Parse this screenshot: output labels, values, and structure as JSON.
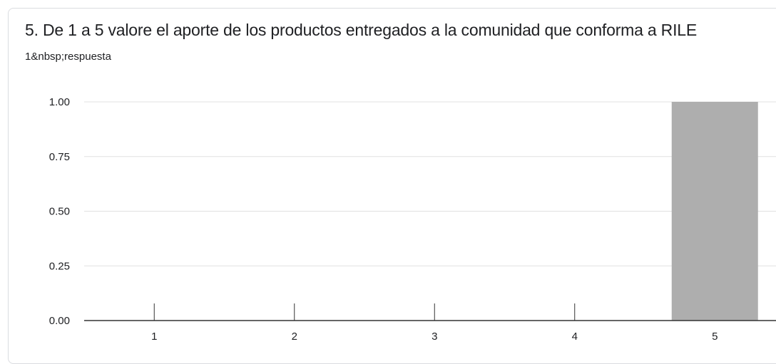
{
  "question": {
    "title": "5. De 1 a 5 valore el aporte de los productos entregados a la comunidad que conforma a RILE",
    "response_count": "1&nbsp;respuesta"
  },
  "colors": {
    "bar": "#aeaeae",
    "axis": "#333333",
    "gridline": "#e0e0e0"
  },
  "chart_data": {
    "type": "bar",
    "categories": [
      "1",
      "2",
      "3",
      "4",
      "5"
    ],
    "values": [
      0,
      0,
      0,
      0,
      1
    ],
    "y_ticks": [
      "0.00",
      "0.25",
      "0.50",
      "0.75",
      "1.00"
    ],
    "ylim": [
      0,
      1
    ],
    "title": "5. De 1 a 5 valore el aporte de los productos entregados a la comunidad que conforma a RILE",
    "xlabel": "",
    "ylabel": "",
    "grid": true
  }
}
